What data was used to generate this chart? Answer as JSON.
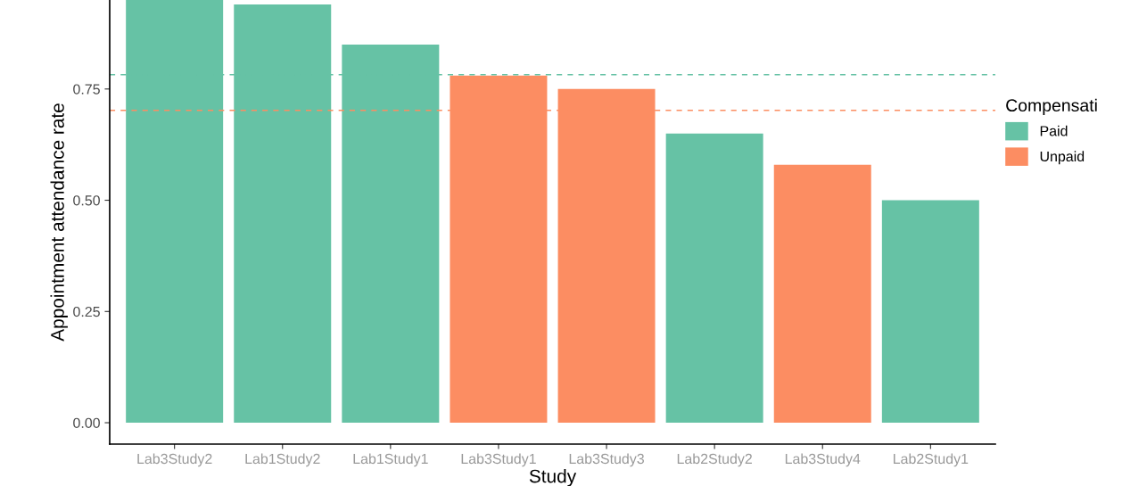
{
  "chart_data": {
    "type": "bar",
    "xlabel": "Study",
    "ylabel": "Appointment attendance rate",
    "legend_title": "Compensati",
    "categories": [
      "Lab3Study2",
      "Lab1Study2",
      "Lab1Study1",
      "Lab3Study1",
      "Lab3Study3",
      "Lab2Study2",
      "Lab3Study4",
      "Lab2Study1"
    ],
    "series": [
      {
        "name": "Paid",
        "color": "#66c2a5",
        "values": [
          0.95,
          0.94,
          0.85,
          null,
          null,
          0.65,
          null,
          0.5
        ]
      },
      {
        "name": "Unpaid",
        "color": "#fc8d62",
        "values": [
          null,
          null,
          null,
          0.78,
          0.75,
          null,
          0.58,
          null
        ]
      }
    ],
    "ylim": [
      -0.048,
      0.95
    ],
    "yticks": [
      {
        "value": 0,
        "label": "0.00"
      },
      {
        "value": 0.25,
        "label": "0.25"
      },
      {
        "value": 0.5,
        "label": "0.50"
      },
      {
        "value": 0.75,
        "label": "0.75"
      }
    ],
    "ref_lines": [
      {
        "axis": "y",
        "value": 0.782,
        "color": "#66c2a5",
        "line_style": "dashed"
      },
      {
        "axis": "y",
        "value": 0.702,
        "color": "#fc8d62",
        "line_style": "dashed"
      }
    ],
    "grid": false,
    "legend": "right"
  }
}
